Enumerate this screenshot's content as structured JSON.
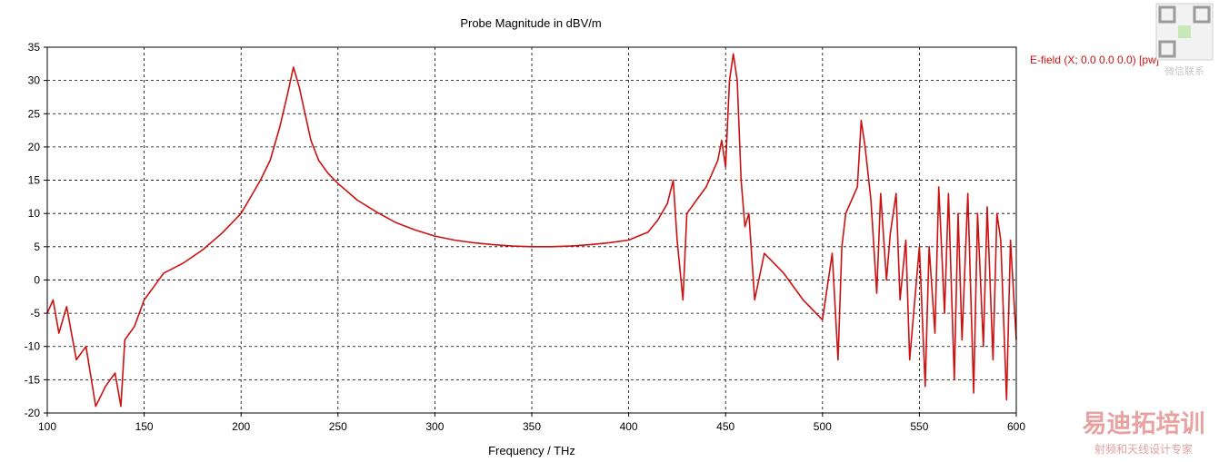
{
  "chart_data": {
    "type": "line",
    "title": "Probe Magnitude in dBV/m",
    "xlabel": "Frequency / THz",
    "ylabel": "",
    "xlim": [
      100,
      600
    ],
    "ylim": [
      -20,
      35
    ],
    "xticks": [
      100,
      150,
      200,
      250,
      300,
      350,
      400,
      450,
      500,
      550,
      600
    ],
    "yticks": [
      -20,
      -15,
      -10,
      -5,
      0,
      5,
      10,
      15,
      20,
      25,
      30,
      35
    ],
    "grid": true,
    "legend_position": "right",
    "series": [
      {
        "name": "E-field (X; 0.0 0.0 0.0) [pw]",
        "color": "#cc1111",
        "x": [
          100,
          103,
          106,
          110,
          115,
          120,
          125,
          130,
          135,
          138,
          140,
          145,
          150,
          155,
          160,
          170,
          180,
          190,
          200,
          205,
          210,
          215,
          220,
          224,
          227,
          230,
          233,
          236,
          240,
          245,
          250,
          260,
          270,
          280,
          290,
          300,
          310,
          320,
          330,
          340,
          350,
          360,
          370,
          380,
          390,
          400,
          410,
          415,
          420,
          423,
          425,
          428,
          430,
          435,
          440,
          443,
          446,
          448,
          450,
          452,
          454,
          456,
          458,
          460,
          462,
          465,
          470,
          480,
          490,
          500,
          505,
          508,
          510,
          512,
          515,
          518,
          520,
          522,
          525,
          528,
          530,
          533,
          535,
          538,
          540,
          543,
          545,
          550,
          553,
          555,
          558,
          560,
          563,
          565,
          568,
          570,
          572,
          575,
          578,
          580,
          583,
          585,
          588,
          590,
          592,
          595,
          597,
          600
        ],
        "y": [
          -5,
          -3,
          -8,
          -4,
          -12,
          -10,
          -19,
          -16,
          -14,
          -19,
          -9,
          -7,
          -3,
          -1,
          1,
          2.5,
          4.5,
          7,
          10,
          12.5,
          15,
          18,
          23,
          28,
          32,
          29,
          25,
          21,
          18,
          16,
          14.5,
          12,
          10.2,
          8.6,
          7.5,
          6.6,
          6,
          5.6,
          5.3,
          5.1,
          5,
          5,
          5.1,
          5.3,
          5.6,
          6,
          7.2,
          9,
          11.5,
          15,
          6,
          -3,
          10,
          12,
          14,
          16,
          18,
          21,
          17,
          30,
          34,
          30,
          15,
          8,
          10,
          -3,
          4,
          1,
          -3,
          -6,
          4,
          -12,
          5,
          10,
          12,
          14,
          24,
          20,
          12,
          -2,
          13,
          0,
          7,
          13,
          -3,
          6,
          -12,
          5,
          -16,
          5,
          -8,
          14,
          -5,
          13,
          -15,
          10,
          -9,
          13,
          -17,
          10,
          -10,
          11,
          -12,
          10,
          6,
          -18,
          6,
          -9
        ],
        "peak_labels": []
      }
    ]
  },
  "watermark": {
    "qr_caption": "微信联系",
    "brand_name": "易迪拓培训",
    "brand_tagline": "射频和天线设计专家"
  }
}
